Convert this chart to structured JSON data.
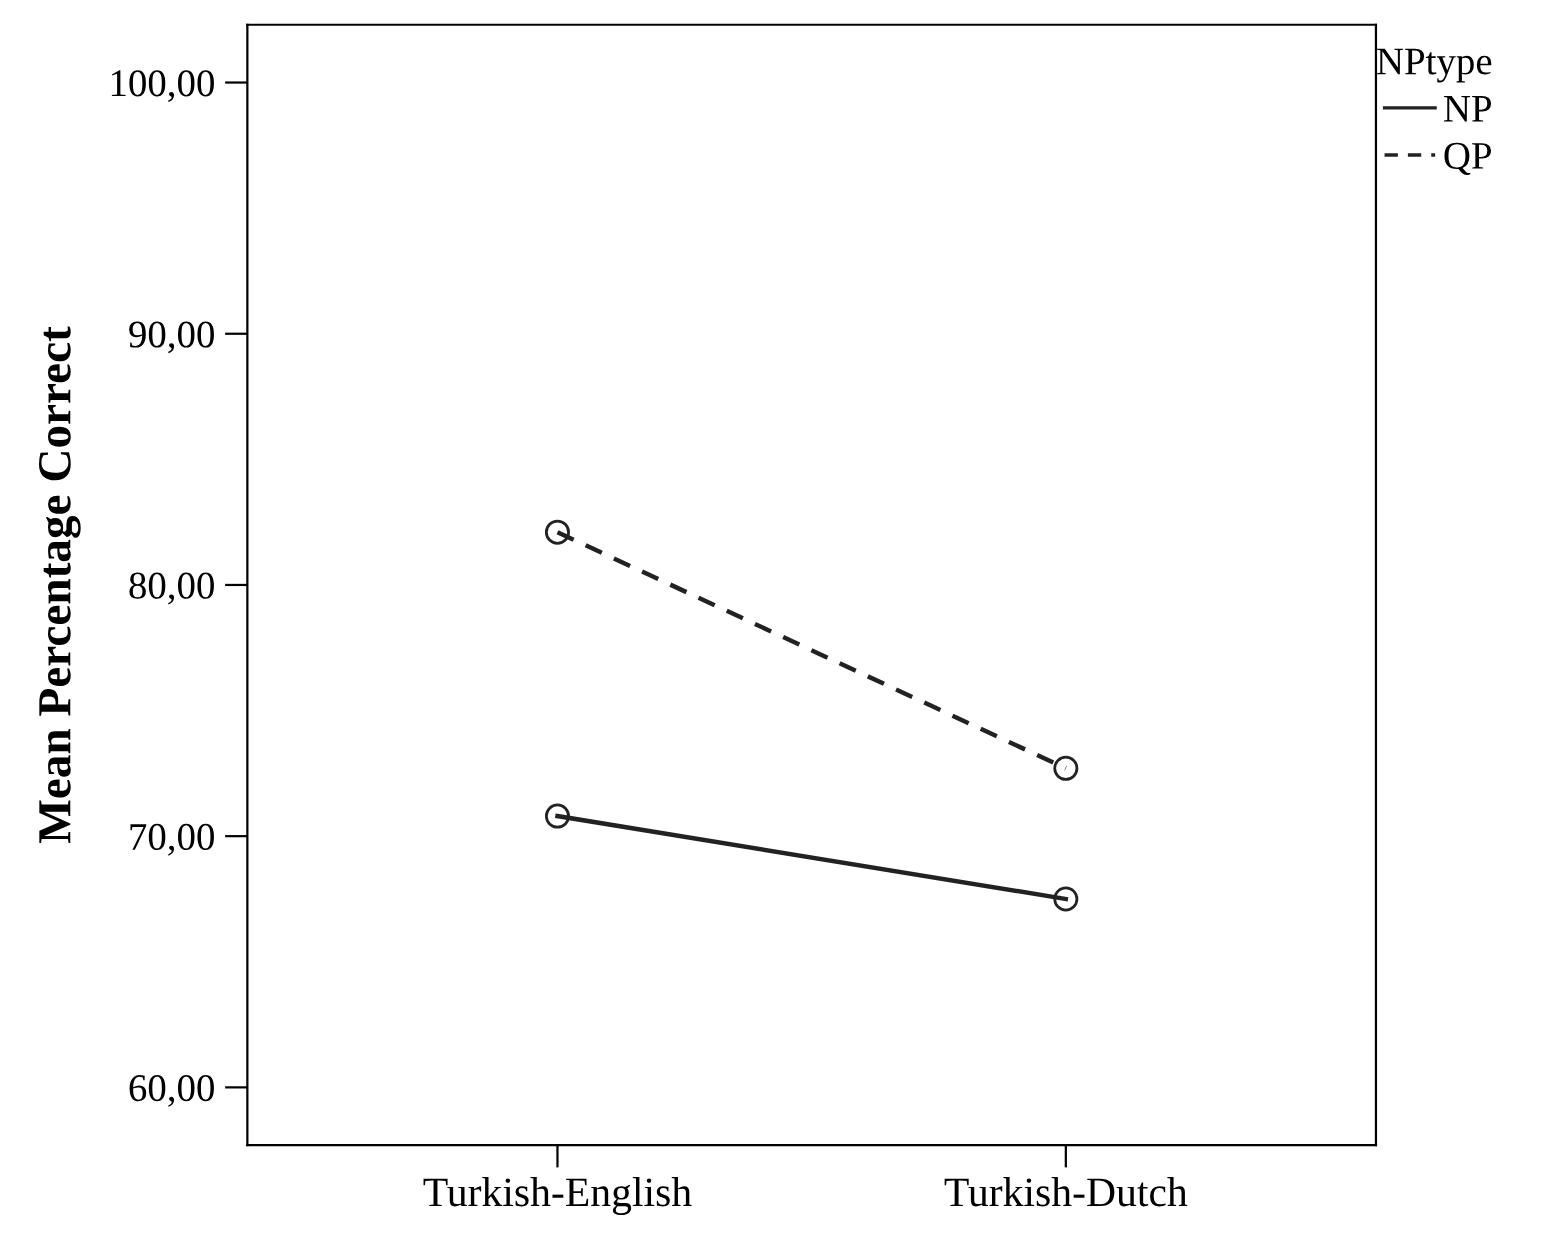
{
  "chart_data": {
    "type": "line",
    "ylabel": "Mean Percentage Correct",
    "legend_title": "NPtype",
    "categories": [
      "Turkish-English",
      "Turkish-Dutch"
    ],
    "series": [
      {
        "name": "NP",
        "color": "#222222",
        "values": [
          70.8,
          67.5
        ],
        "line_style": "solid"
      },
      {
        "name": "QP",
        "color": "#222222",
        "values": [
          82.1,
          72.7
        ],
        "line_style": "dashed"
      }
    ],
    "ylim": [
      57.7,
      102.3
    ],
    "yticks": [
      {
        "value": 60,
        "label": "60,00"
      },
      {
        "value": 70,
        "label": "70,00"
      },
      {
        "value": 80,
        "label": "80,00"
      },
      {
        "value": 90,
        "label": "90,00"
      },
      {
        "value": 100,
        "label": "100,00"
      }
    ],
    "marker": "circle",
    "grid": false,
    "legend": "top right"
  }
}
